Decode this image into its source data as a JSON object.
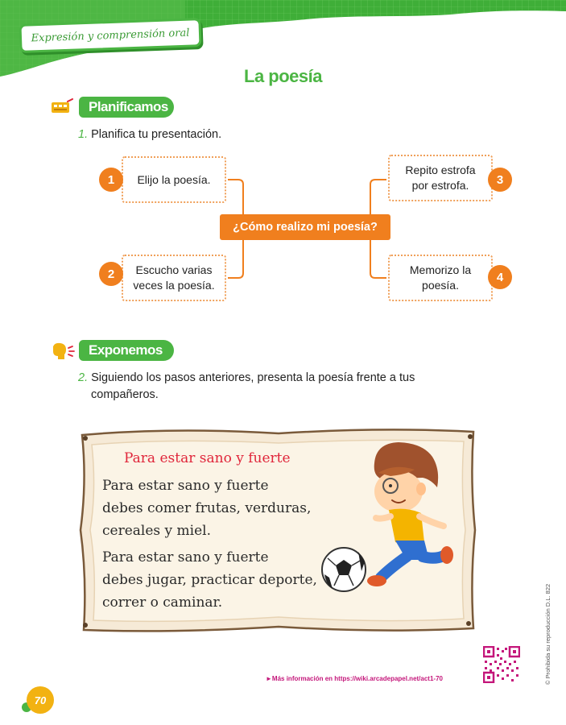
{
  "header": {
    "section_label": "Expresión y comprensión oral",
    "title": "La poesía",
    "colors": {
      "green": "#4bb543",
      "orange": "#f07f1e",
      "red": "#e0253a",
      "yellow": "#f2b212"
    }
  },
  "planificamos": {
    "heading": "Planificamos",
    "icon": "presentation-board-icon",
    "instruction_number": "1.",
    "instruction_text": "Planifica tu presentación."
  },
  "mindmap": {
    "center": "¿Cómo realizo mi poesía?",
    "steps": [
      {
        "number": "1",
        "line1": "Elijo la poesía.",
        "line2": ""
      },
      {
        "number": "2",
        "line1": "Escucho varias",
        "line2": "veces la poesía."
      },
      {
        "number": "3",
        "line1": "Repito estrofa",
        "line2": "por estrofa."
      },
      {
        "number": "4",
        "line1": "Memorizo la",
        "line2": "poesía."
      }
    ]
  },
  "exponemos": {
    "heading": "Exponemos",
    "icon": "speaking-head-icon",
    "instruction_number": "2.",
    "instruction_line1": "Siguiendo los pasos anteriores, presenta la poesía frente a tus",
    "instruction_line2": "compañeros."
  },
  "poem": {
    "title": "Para estar sano y fuerte",
    "lines": [
      "Para estar sano y fuerte",
      "debes comer frutas, verduras,",
      "cereales y miel.",
      "Para estar sano y fuerte",
      "debes jugar, practicar deporte,",
      "correr o caminar."
    ],
    "illustration": "boy-kicking-soccer-ball"
  },
  "footer": {
    "more_info": "►Más información en https://wiki.arcadepapel.net/act1-70",
    "copyright": "© Prohibida su reproducción D.L. 822",
    "page_number": "70",
    "qr": "qr-code-icon"
  }
}
